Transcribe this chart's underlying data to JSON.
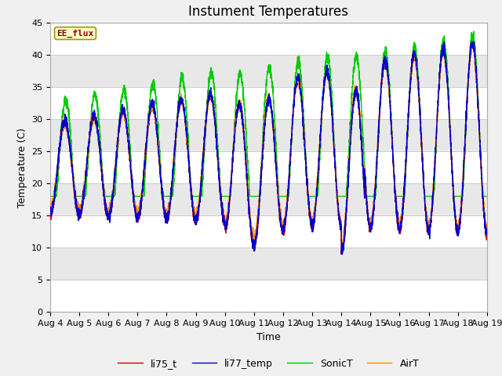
{
  "title": "Instument Temperatures",
  "xlabel": "Time",
  "ylabel": "Temperature (C)",
  "ylim": [
    0,
    45
  ],
  "annotation": "EE_flux",
  "legend_labels": [
    "li75_t",
    "li77_temp",
    "SonicT",
    "AirT"
  ],
  "line_colors": [
    "#cc0000",
    "#0000cc",
    "#00cc00",
    "#ff8800"
  ],
  "fig_bg_color": "#f0f0f0",
  "plot_bg_color": "#ffffff",
  "band_color": "#e8e8e8",
  "x_tick_labels": [
    "Aug 4",
    "Aug 5",
    "Aug 6",
    "Aug 7",
    "Aug 8",
    "Aug 9",
    "Aug 10",
    "Aug 11",
    "Aug 12",
    "Aug 13",
    "Aug 14",
    "Aug 15",
    "Aug 16",
    "Aug 17",
    "Aug 18",
    "Aug 19"
  ],
  "title_fontsize": 12,
  "axis_fontsize": 9,
  "legend_fontsize": 9,
  "tick_fontsize": 8
}
